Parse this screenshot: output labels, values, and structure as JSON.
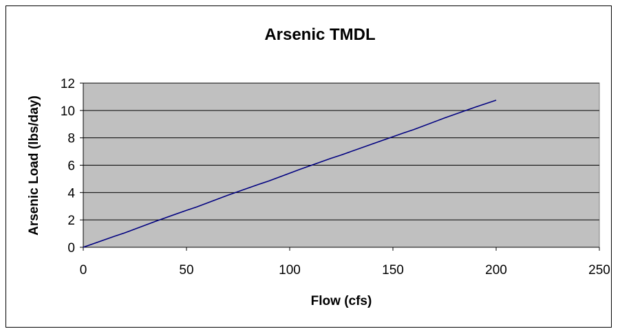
{
  "chart_data": {
    "type": "line",
    "title": "Arsenic TMDL",
    "xlabel": "Flow (cfs)",
    "ylabel": "Arsenic Load (lbs/day)",
    "xlim": [
      0,
      250
    ],
    "ylim": [
      0,
      12
    ],
    "x_ticks": [
      "0",
      "50",
      "100",
      "150",
      "200",
      "250"
    ],
    "y_ticks": [
      "0",
      "2",
      "4",
      "6",
      "8",
      "10",
      "12"
    ],
    "grid": "horizontal",
    "legend": "none",
    "plot_background": "#c0c0c0",
    "series": [
      {
        "color": "#000080",
        "x": [
          0,
          15,
          20,
          35,
          50,
          55,
          70,
          85,
          90,
          105,
          120,
          125,
          140,
          155,
          160,
          175,
          190,
          195,
          200
        ],
        "y": [
          0,
          0.8,
          1.05,
          1.9,
          2.7,
          2.95,
          3.8,
          4.6,
          4.85,
          5.7,
          6.5,
          6.75,
          7.55,
          8.35,
          8.6,
          9.45,
          10.25,
          10.5,
          10.75
        ]
      }
    ]
  }
}
